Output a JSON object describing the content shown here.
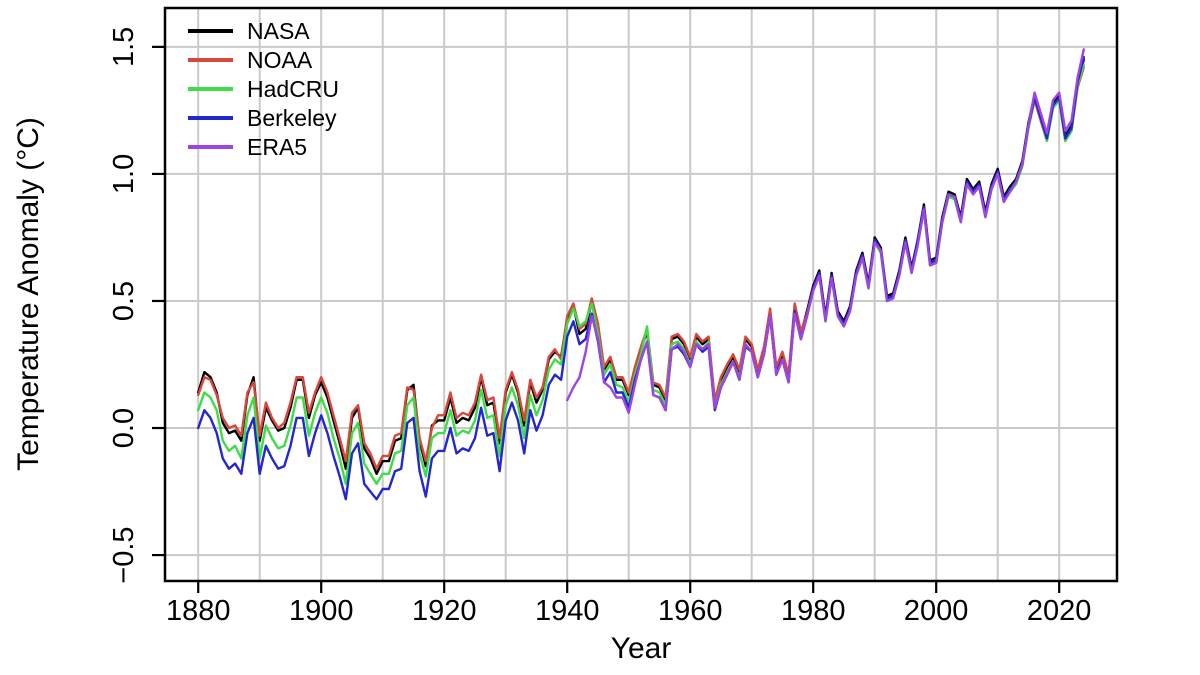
{
  "chart_data": {
    "type": "line",
    "title": "",
    "xlabel": "Year",
    "ylabel": "Temperature Anomaly (°C)",
    "xlim": [
      1874.6,
      2029.4
    ],
    "ylim": [
      -0.602,
      1.653
    ],
    "x_ticks": [
      1880,
      1900,
      1920,
      1940,
      1960,
      1980,
      2000,
      2020
    ],
    "x_gridlines": [
      1880,
      1890,
      1900,
      1910,
      1920,
      1930,
      1940,
      1950,
      1960,
      1970,
      1980,
      1990,
      2000,
      2010,
      2020
    ],
    "y_ticks": [
      -0.5,
      0.0,
      0.5,
      1.0,
      1.5
    ],
    "y_tick_labels": [
      "−0.5",
      "0.0",
      "0.5",
      "1.0",
      "1.5"
    ],
    "grid": true,
    "grid_color": "#c9c9c9",
    "legend_position": "top-left",
    "series": [
      {
        "name": "NASA",
        "color": "#000000",
        "start_year": 1880,
        "end_year": 2024,
        "values": [
          0.14,
          0.22,
          0.2,
          0.14,
          0.02,
          -0.02,
          -0.01,
          -0.05,
          0.13,
          0.2,
          -0.05,
          0.08,
          0.03,
          -0.01,
          0.0,
          0.08,
          0.19,
          0.19,
          0.04,
          0.13,
          0.18,
          0.12,
          0.03,
          -0.06,
          -0.16,
          0.04,
          0.08,
          -0.08,
          -0.12,
          -0.18,
          -0.13,
          -0.13,
          -0.05,
          -0.04,
          0.15,
          0.17,
          -0.05,
          -0.15,
          0.01,
          0.03,
          0.03,
          0.12,
          0.02,
          0.04,
          0.03,
          0.08,
          0.2,
          0.09,
          0.1,
          -0.06,
          0.14,
          0.21,
          0.14,
          0.01,
          0.18,
          0.1,
          0.15,
          0.27,
          0.3,
          0.28,
          0.43,
          0.48,
          0.37,
          0.39,
          0.5,
          0.39,
          0.23,
          0.27,
          0.19,
          0.19,
          0.13,
          0.23,
          0.31,
          0.38,
          0.17,
          0.16,
          0.11,
          0.35,
          0.36,
          0.33,
          0.27,
          0.36,
          0.33,
          0.35,
          0.1,
          0.19,
          0.24,
          0.28,
          0.22,
          0.35,
          0.32,
          0.22,
          0.31,
          0.46,
          0.23,
          0.29,
          0.2,
          0.48,
          0.37,
          0.46,
          0.56,
          0.62,
          0.44,
          0.61,
          0.46,
          0.42,
          0.48,
          0.62,
          0.69,
          0.57,
          0.75,
          0.71,
          0.52,
          0.53,
          0.62,
          0.75,
          0.63,
          0.74,
          0.88,
          0.66,
          0.67,
          0.83,
          0.93,
          0.92,
          0.83,
          0.98,
          0.94,
          0.97,
          0.85,
          0.96,
          1.02,
          0.91,
          0.95,
          0.98,
          1.05,
          1.2,
          1.31,
          1.23,
          1.15,
          1.28,
          1.31,
          1.15,
          1.19,
          1.36,
          1.45
        ]
      },
      {
        "name": "NOAA",
        "color": "#d8463c",
        "start_year": 1880,
        "end_year": 2024,
        "values": [
          0.13,
          0.2,
          0.19,
          0.13,
          0.04,
          0.0,
          0.01,
          -0.03,
          0.14,
          0.18,
          -0.03,
          0.1,
          0.04,
          0.0,
          0.02,
          0.1,
          0.2,
          0.2,
          0.06,
          0.14,
          0.2,
          0.14,
          0.05,
          -0.04,
          -0.13,
          0.06,
          0.09,
          -0.06,
          -0.1,
          -0.16,
          -0.11,
          -0.11,
          -0.03,
          -0.02,
          0.16,
          0.15,
          -0.04,
          -0.13,
          0.0,
          0.05,
          0.05,
          0.14,
          0.04,
          0.06,
          0.05,
          0.1,
          0.21,
          0.11,
          0.12,
          -0.04,
          0.15,
          0.22,
          0.15,
          0.03,
          0.19,
          0.12,
          0.16,
          0.28,
          0.31,
          0.27,
          0.44,
          0.49,
          0.39,
          0.41,
          0.51,
          0.41,
          0.24,
          0.28,
          0.2,
          0.2,
          0.14,
          0.24,
          0.32,
          0.39,
          0.18,
          0.17,
          0.12,
          0.36,
          0.37,
          0.34,
          0.28,
          0.37,
          0.34,
          0.36,
          0.11,
          0.2,
          0.25,
          0.29,
          0.23,
          0.36,
          0.33,
          0.23,
          0.32,
          0.47,
          0.24,
          0.3,
          0.21,
          0.49,
          0.38,
          0.45,
          0.55,
          0.61,
          0.43,
          0.6,
          0.45,
          0.41,
          0.47,
          0.61,
          0.68,
          0.56,
          0.74,
          0.7,
          0.51,
          0.52,
          0.61,
          0.74,
          0.62,
          0.73,
          0.87,
          0.65,
          0.66,
          0.82,
          0.92,
          0.91,
          0.82,
          0.96,
          0.93,
          0.95,
          0.84,
          0.95,
          1.0,
          0.9,
          0.93,
          0.97,
          1.03,
          1.18,
          1.29,
          1.21,
          1.13,
          1.26,
          1.29,
          1.13,
          1.17,
          1.34,
          1.42
        ]
      },
      {
        "name": "HadCRU",
        "color": "#3edd47",
        "start_year": 1880,
        "end_year": 2024,
        "values": [
          0.07,
          0.14,
          0.12,
          0.07,
          -0.05,
          -0.09,
          -0.07,
          -0.12,
          0.05,
          0.12,
          -0.12,
          0.01,
          -0.04,
          -0.08,
          -0.07,
          0.01,
          0.12,
          0.12,
          -0.03,
          0.06,
          0.12,
          0.06,
          -0.04,
          -0.12,
          -0.22,
          -0.02,
          0.02,
          -0.14,
          -0.18,
          -0.22,
          -0.18,
          -0.18,
          -0.1,
          -0.09,
          0.09,
          0.12,
          -0.1,
          -0.19,
          -0.04,
          -0.02,
          -0.02,
          0.07,
          -0.03,
          -0.01,
          -0.02,
          0.03,
          0.15,
          0.04,
          0.05,
          -0.11,
          0.09,
          0.16,
          0.09,
          -0.04,
          0.13,
          0.05,
          0.11,
          0.23,
          0.27,
          0.25,
          0.41,
          0.47,
          0.4,
          0.42,
          0.49,
          0.37,
          0.21,
          0.25,
          0.17,
          0.16,
          0.1,
          0.21,
          0.29,
          0.4,
          0.15,
          0.14,
          0.09,
          0.33,
          0.34,
          0.31,
          0.25,
          0.34,
          0.31,
          0.34,
          0.08,
          0.17,
          0.22,
          0.26,
          0.2,
          0.33,
          0.3,
          0.2,
          0.29,
          0.44,
          0.21,
          0.27,
          0.18,
          0.46,
          0.35,
          0.44,
          0.54,
          0.6,
          0.42,
          0.59,
          0.44,
          0.4,
          0.46,
          0.6,
          0.67,
          0.55,
          0.73,
          0.69,
          0.5,
          0.51,
          0.6,
          0.73,
          0.61,
          0.72,
          0.86,
          0.64,
          0.65,
          0.81,
          0.91,
          0.9,
          0.81,
          0.96,
          0.92,
          0.95,
          0.83,
          0.94,
          1.0,
          0.89,
          0.93,
          0.96,
          1.03,
          1.18,
          1.3,
          1.22,
          1.13,
          1.26,
          1.29,
          1.13,
          1.17,
          1.35,
          1.43
        ]
      },
      {
        "name": "Berkeley",
        "color": "#2426cf",
        "start_year": 1880,
        "end_year": 2024,
        "values": [
          0.0,
          0.07,
          0.04,
          -0.02,
          -0.12,
          -0.16,
          -0.14,
          -0.18,
          -0.02,
          0.04,
          -0.18,
          -0.07,
          -0.12,
          -0.16,
          -0.15,
          -0.07,
          0.04,
          0.04,
          -0.11,
          -0.02,
          0.05,
          -0.02,
          -0.11,
          -0.19,
          -0.28,
          -0.1,
          -0.06,
          -0.22,
          -0.25,
          -0.28,
          -0.24,
          -0.24,
          -0.17,
          -0.16,
          0.02,
          0.04,
          -0.17,
          -0.27,
          -0.12,
          -0.09,
          -0.09,
          0.0,
          -0.1,
          -0.08,
          -0.09,
          -0.04,
          0.08,
          -0.03,
          -0.02,
          -0.17,
          0.03,
          0.1,
          0.03,
          -0.1,
          0.07,
          -0.01,
          0.05,
          0.17,
          0.21,
          0.19,
          0.36,
          0.42,
          0.33,
          0.35,
          0.45,
          0.34,
          0.18,
          0.22,
          0.14,
          0.14,
          0.08,
          0.19,
          0.27,
          0.34,
          0.13,
          0.12,
          0.07,
          0.31,
          0.32,
          0.29,
          0.24,
          0.33,
          0.3,
          0.32,
          0.07,
          0.16,
          0.21,
          0.26,
          0.19,
          0.32,
          0.3,
          0.2,
          0.29,
          0.44,
          0.21,
          0.27,
          0.18,
          0.46,
          0.35,
          0.44,
          0.55,
          0.61,
          0.43,
          0.6,
          0.45,
          0.41,
          0.47,
          0.61,
          0.68,
          0.56,
          0.74,
          0.7,
          0.51,
          0.52,
          0.61,
          0.74,
          0.62,
          0.74,
          0.87,
          0.65,
          0.66,
          0.82,
          0.92,
          0.91,
          0.82,
          0.97,
          0.93,
          0.96,
          0.84,
          0.95,
          1.01,
          0.9,
          0.94,
          0.97,
          1.04,
          1.19,
          1.3,
          1.22,
          1.14,
          1.27,
          1.3,
          1.14,
          1.18,
          1.36,
          1.46
        ]
      },
      {
        "name": "ERA5",
        "color": "#9d44e2",
        "start_year": 1940,
        "end_year": 2024,
        "values": [
          0.11,
          0.16,
          0.2,
          0.3,
          0.44,
          0.35,
          0.18,
          0.16,
          0.12,
          0.12,
          0.06,
          0.17,
          0.27,
          0.34,
          0.13,
          0.12,
          0.07,
          0.31,
          0.33,
          0.3,
          0.24,
          0.33,
          0.31,
          0.33,
          0.08,
          0.16,
          0.21,
          0.26,
          0.19,
          0.33,
          0.3,
          0.2,
          0.29,
          0.44,
          0.21,
          0.27,
          0.18,
          0.45,
          0.35,
          0.44,
          0.54,
          0.6,
          0.42,
          0.59,
          0.44,
          0.4,
          0.46,
          0.6,
          0.67,
          0.55,
          0.73,
          0.7,
          0.5,
          0.51,
          0.6,
          0.73,
          0.61,
          0.72,
          0.86,
          0.64,
          0.65,
          0.81,
          0.92,
          0.91,
          0.81,
          0.96,
          0.92,
          0.95,
          0.83,
          0.94,
          1.0,
          0.89,
          0.93,
          0.97,
          1.04,
          1.19,
          1.32,
          1.24,
          1.16,
          1.29,
          1.32,
          1.17,
          1.21,
          1.38,
          1.49
        ]
      }
    ]
  }
}
